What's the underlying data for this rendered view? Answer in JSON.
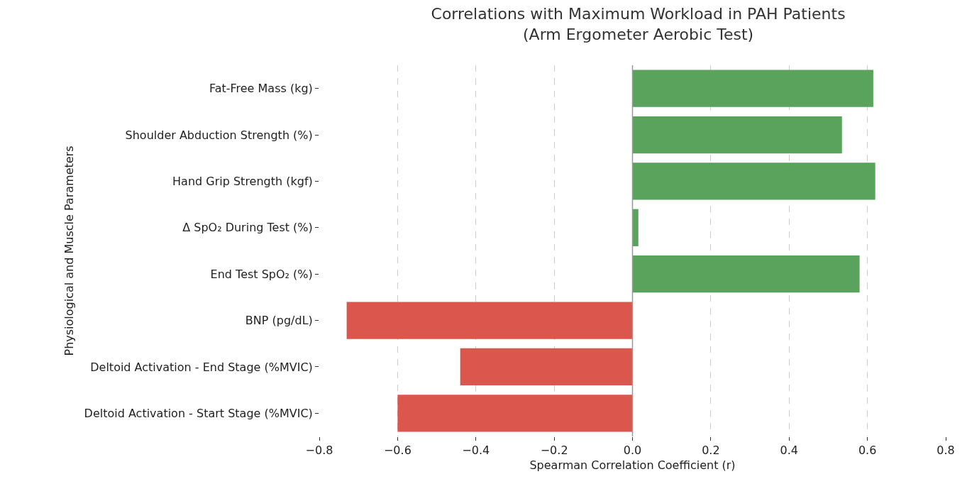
{
  "chart_data": {
    "type": "bar",
    "orientation": "horizontal",
    "title": "Correlations with Maximum Workload in PAH Patients\n(Arm Ergometer Aerobic Test)",
    "xlabel": "Spearman Correlation Coefficient (r)",
    "ylabel": "Physiological and Muscle Parameters",
    "categories": [
      "Fat-Free Mass (kg)",
      "Shoulder Abduction Strength (%)",
      "Hand Grip Strength (kgf)",
      "Δ SpO₂ During Test (%)",
      "End Test SpO₂ (%)",
      "BNP (pg/dL)",
      "Deltoid Activation - End Stage (%MVIC)",
      "Deltoid Activation - Start Stage (%MVIC)"
    ],
    "values": [
      0.615,
      0.535,
      0.62,
      0.015,
      0.58,
      -0.73,
      -0.44,
      -0.6
    ],
    "colors": [
      "#59a35c",
      "#59a35c",
      "#59a35c",
      "#59a35c",
      "#59a35c",
      "#db574d",
      "#db574d",
      "#db574d"
    ],
    "xlim": [
      -0.8,
      0.8
    ],
    "xticks": [
      {
        "value": -0.8,
        "label": "−0.8"
      },
      {
        "value": -0.6,
        "label": "−0.6"
      },
      {
        "value": -0.4,
        "label": "−0.4"
      },
      {
        "value": -0.2,
        "label": "−0.2"
      },
      {
        "value": 0,
        "label": "0.0"
      },
      {
        "value": 0.2,
        "label": "0.2"
      },
      {
        "value": 0.4,
        "label": "0.4"
      },
      {
        "value": 0.6,
        "label": "0.6"
      },
      {
        "value": 0.8,
        "label": "0.8"
      }
    ],
    "grid": "x",
    "ref_lines": [
      {
        "axis": "x",
        "value": 0,
        "color": "#999999"
      }
    ]
  }
}
